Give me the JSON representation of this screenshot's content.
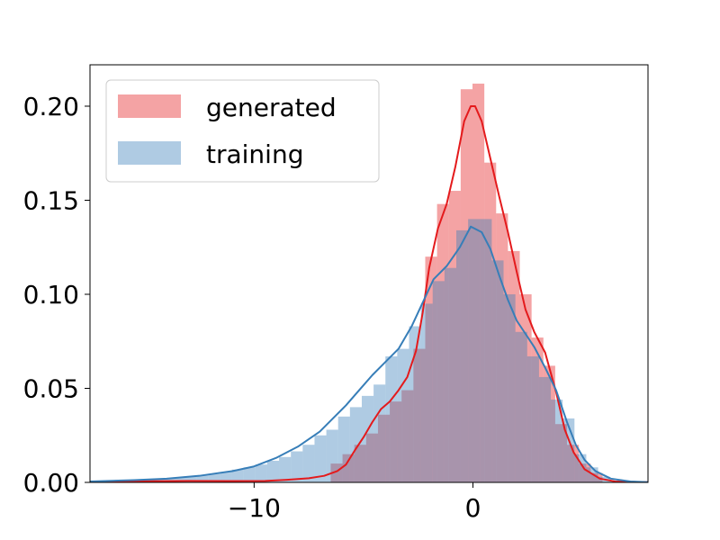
{
  "chart_data": {
    "type": "bar",
    "title": "",
    "xlabel": "",
    "ylabel": "",
    "xlim": [
      -17.5,
      8
    ],
    "ylim": [
      0,
      0.222
    ],
    "grid": false,
    "legend_placement": "top-left",
    "x_ticks": [
      {
        "value": -10,
        "label": "−10"
      },
      {
        "value": 0,
        "label": "0"
      }
    ],
    "y_ticks": [
      {
        "value": 0.0,
        "label": "0.00"
      },
      {
        "value": 0.05,
        "label": "0.05"
      },
      {
        "value": 0.1,
        "label": "0.10"
      },
      {
        "value": 0.15,
        "label": "0.15"
      },
      {
        "value": 0.2,
        "label": "0.20"
      }
    ],
    "bin_width": 0.54,
    "series": [
      {
        "name": "generated",
        "color": "#e41a1c",
        "bar_color": "#f4a3a4",
        "bins": [
          {
            "x0": -6.5,
            "v": 0.01
          },
          {
            "x0": -5.96,
            "v": 0.015
          },
          {
            "x0": -5.42,
            "v": 0.02
          },
          {
            "x0": -4.88,
            "v": 0.026
          },
          {
            "x0": -4.34,
            "v": 0.036
          },
          {
            "x0": -3.8,
            "v": 0.043
          },
          {
            "x0": -3.26,
            "v": 0.049
          },
          {
            "x0": -2.72,
            "v": 0.071
          },
          {
            "x0": -2.18,
            "v": 0.12
          },
          {
            "x0": -1.64,
            "v": 0.148
          },
          {
            "x0": -1.1,
            "v": 0.155
          },
          {
            "x0": -0.56,
            "v": 0.209
          },
          {
            "x0": -0.02,
            "v": 0.212
          },
          {
            "x0": 0.52,
            "v": 0.17
          },
          {
            "x0": 1.06,
            "v": 0.143
          },
          {
            "x0": 1.6,
            "v": 0.123
          },
          {
            "x0": 2.14,
            "v": 0.1
          },
          {
            "x0": 2.68,
            "v": 0.077
          },
          {
            "x0": 3.22,
            "v": 0.062
          },
          {
            "x0": 3.76,
            "v": 0.031
          },
          {
            "x0": 4.3,
            "v": 0.02
          },
          {
            "x0": 4.84,
            "v": 0.01
          },
          {
            "x0": 5.38,
            "v": 0.005
          }
        ],
        "kde": [
          [
            -17.5,
            0.0003
          ],
          [
            -15,
            0.0006
          ],
          [
            -13,
            0.0008
          ],
          [
            -11,
            0.0007
          ],
          [
            -9.5,
            0.0008
          ],
          [
            -8.5,
            0.0014
          ],
          [
            -7.5,
            0.0022
          ],
          [
            -6.8,
            0.0035
          ],
          [
            -6.2,
            0.006
          ],
          [
            -5.8,
            0.0095
          ],
          [
            -5.4,
            0.017
          ],
          [
            -5.0,
            0.024
          ],
          [
            -4.6,
            0.032
          ],
          [
            -4.2,
            0.039
          ],
          [
            -3.8,
            0.043
          ],
          [
            -3.4,
            0.049
          ],
          [
            -3.0,
            0.056
          ],
          [
            -2.6,
            0.07
          ],
          [
            -2.3,
            0.09
          ],
          [
            -2.0,
            0.114
          ],
          [
            -1.6,
            0.135
          ],
          [
            -1.2,
            0.148
          ],
          [
            -0.8,
            0.168
          ],
          [
            -0.4,
            0.192
          ],
          [
            -0.1,
            0.2
          ],
          [
            0.1,
            0.2
          ],
          [
            0.4,
            0.192
          ],
          [
            0.8,
            0.172
          ],
          [
            1.2,
            0.152
          ],
          [
            1.6,
            0.133
          ],
          [
            2.0,
            0.112
          ],
          [
            2.4,
            0.092
          ],
          [
            2.8,
            0.08
          ],
          [
            3.3,
            0.069
          ],
          [
            3.8,
            0.048
          ],
          [
            4.2,
            0.028
          ],
          [
            4.6,
            0.016
          ],
          [
            5.1,
            0.007
          ],
          [
            5.8,
            0.002
          ],
          [
            6.5,
            0.0005
          ],
          [
            8.0,
            0.0001
          ]
        ]
      },
      {
        "name": "training",
        "color": "#377eb8",
        "bar_color": "#afcbe3",
        "bins": [
          {
            "x0": -17.5,
            "v": 0.0005
          },
          {
            "x0": -16.96,
            "v": 0.0007
          },
          {
            "x0": -16.42,
            "v": 0.0008
          },
          {
            "x0": -15.88,
            "v": 0.001
          },
          {
            "x0": -15.34,
            "v": 0.0013
          },
          {
            "x0": -14.8,
            "v": 0.0017
          },
          {
            "x0": -14.26,
            "v": 0.002
          },
          {
            "x0": -13.72,
            "v": 0.0025
          },
          {
            "x0": -13.18,
            "v": 0.003
          },
          {
            "x0": -12.64,
            "v": 0.0037
          },
          {
            "x0": -12.1,
            "v": 0.0045
          },
          {
            "x0": -11.56,
            "v": 0.0055
          },
          {
            "x0": -11.02,
            "v": 0.0068
          },
          {
            "x0": -10.48,
            "v": 0.008
          },
          {
            "x0": -9.94,
            "v": 0.0095
          },
          {
            "x0": -9.4,
            "v": 0.0115
          },
          {
            "x0": -8.86,
            "v": 0.0135
          },
          {
            "x0": -8.32,
            "v": 0.0165
          },
          {
            "x0": -7.78,
            "v": 0.02
          },
          {
            "x0": -7.24,
            "v": 0.025
          },
          {
            "x0": -6.7,
            "v": 0.028
          },
          {
            "x0": -6.16,
            "v": 0.035
          },
          {
            "x0": -5.62,
            "v": 0.04
          },
          {
            "x0": -5.08,
            "v": 0.046
          },
          {
            "x0": -4.54,
            "v": 0.052
          },
          {
            "x0": -4.0,
            "v": 0.067
          },
          {
            "x0": -3.46,
            "v": 0.071
          },
          {
            "x0": -2.92,
            "v": 0.083
          },
          {
            "x0": -2.38,
            "v": 0.095
          },
          {
            "x0": -1.84,
            "v": 0.107
          },
          {
            "x0": -1.3,
            "v": 0.114
          },
          {
            "x0": -0.76,
            "v": 0.134
          },
          {
            "x0": -0.22,
            "v": 0.14
          },
          {
            "x0": 0.32,
            "v": 0.14
          },
          {
            "x0": 0.86,
            "v": 0.118
          },
          {
            "x0": 1.4,
            "v": 0.1
          },
          {
            "x0": 1.94,
            "v": 0.08
          },
          {
            "x0": 2.48,
            "v": 0.067
          },
          {
            "x0": 3.02,
            "v": 0.056
          },
          {
            "x0": 3.56,
            "v": 0.044
          },
          {
            "x0": 4.1,
            "v": 0.034
          },
          {
            "x0": 4.64,
            "v": 0.015
          },
          {
            "x0": 5.18,
            "v": 0.008
          },
          {
            "x0": 5.72,
            "v": 0.003
          },
          {
            "x0": 6.26,
            "v": 0.001
          }
        ],
        "kde": [
          [
            -17.5,
            0.0005
          ],
          [
            -15.5,
            0.0012
          ],
          [
            -14,
            0.002
          ],
          [
            -12.5,
            0.0035
          ],
          [
            -11,
            0.006
          ],
          [
            -10,
            0.0085
          ],
          [
            -9,
            0.013
          ],
          [
            -8,
            0.019
          ],
          [
            -7,
            0.027
          ],
          [
            -6.4,
            0.034
          ],
          [
            -5.8,
            0.041
          ],
          [
            -5.2,
            0.049
          ],
          [
            -4.6,
            0.057
          ],
          [
            -4.0,
            0.064
          ],
          [
            -3.4,
            0.071
          ],
          [
            -2.8,
            0.083
          ],
          [
            -2.2,
            0.098
          ],
          [
            -1.8,
            0.108
          ],
          [
            -1.2,
            0.115
          ],
          [
            -0.6,
            0.125
          ],
          [
            -0.1,
            0.136
          ],
          [
            0.4,
            0.133
          ],
          [
            0.8,
            0.124
          ],
          [
            1.2,
            0.11
          ],
          [
            1.6,
            0.097
          ],
          [
            2.0,
            0.086
          ],
          [
            2.4,
            0.079
          ],
          [
            2.8,
            0.072
          ],
          [
            3.3,
            0.061
          ],
          [
            3.8,
            0.049
          ],
          [
            4.3,
            0.032
          ],
          [
            4.7,
            0.02
          ],
          [
            5.1,
            0.012
          ],
          [
            5.6,
            0.006
          ],
          [
            6.3,
            0.002
          ],
          [
            7.2,
            0.0005
          ],
          [
            8.0,
            0.0001
          ]
        ]
      }
    ]
  }
}
